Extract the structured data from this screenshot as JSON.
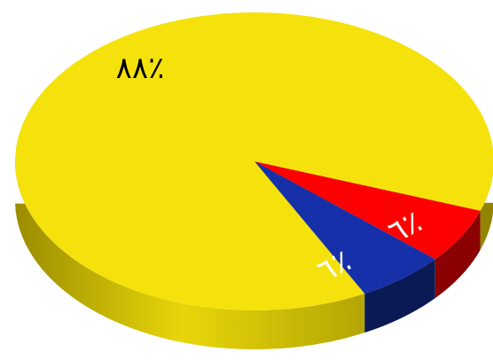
{
  "chart_data": {
    "type": "pie",
    "style": "3d",
    "slices": [
      {
        "name": "",
        "value": 88,
        "label": "٨٨٪",
        "color": "#F5E20C",
        "side_color": "#C9B800",
        "label_color": "#000000"
      },
      {
        "name": "",
        "value": 6,
        "label": "٦٪",
        "color": "#FF0000",
        "side_color": "#8B0000",
        "label_color": "#FFFFFF"
      },
      {
        "name": "",
        "value": 6,
        "label": "٦٪",
        "color": "#1530A8",
        "side_color": "#0A1A55",
        "label_color": "#FFFFFF"
      }
    ],
    "title": "",
    "legend": "none"
  }
}
